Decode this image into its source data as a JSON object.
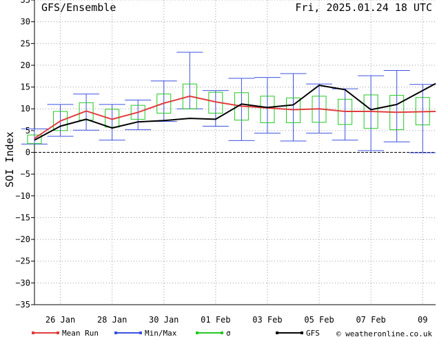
{
  "chart_data": {
    "type": "line",
    "title": "GFS/Ensemble",
    "run_label": "Fri, 2025.01.24   18 UTC",
    "ylabel": "SOI Index",
    "ylim": [
      -35,
      35
    ],
    "yticks": [
      -35,
      -30,
      -25,
      -20,
      -15,
      -10,
      -5,
      0,
      5,
      10,
      15,
      20,
      25,
      30,
      35
    ],
    "xlim": [
      0,
      15.5
    ],
    "x_tick_labels": [
      {
        "x": 1,
        "label": "26 Jan"
      },
      {
        "x": 3,
        "label": "28 Jan"
      },
      {
        "x": 5,
        "label": "30 Jan"
      },
      {
        "x": 7,
        "label": "01 Feb"
      },
      {
        "x": 9,
        "label": "03 Feb"
      },
      {
        "x": 11,
        "label": "05 Feb"
      },
      {
        "x": 13,
        "label": "07 Feb"
      },
      {
        "x": 15,
        "label": "09"
      }
    ],
    "grid": true,
    "legend_position": "bottom",
    "series": [
      {
        "name": "Mean Run",
        "color": "#e03c3c",
        "x": [
          0,
          1,
          2,
          3,
          4,
          5,
          6,
          7,
          8,
          9,
          10,
          11,
          12,
          13,
          14,
          15.5
        ],
        "values": [
          3.2,
          7.2,
          9.5,
          7.6,
          9.2,
          11.3,
          12.9,
          11.6,
          10.6,
          10.2,
          9.8,
          10.0,
          9.4,
          9.4,
          9.2,
          9.4
        ]
      },
      {
        "name": "GFS",
        "color": "#000000",
        "x": [
          0,
          1,
          2,
          3,
          4,
          5,
          6,
          7,
          8,
          9,
          10,
          11,
          12,
          13,
          14,
          15.5
        ],
        "values": [
          2.8,
          6.0,
          7.6,
          5.6,
          7.0,
          7.3,
          7.8,
          7.6,
          11.1,
          10.3,
          10.9,
          15.4,
          14.4,
          9.8,
          11.0,
          15.8
        ]
      }
    ],
    "minmax": {
      "name": "Min/Max",
      "color": "#3c50e0",
      "x": [
        0,
        1,
        2,
        3,
        4,
        5,
        6,
        7,
        8,
        9,
        10,
        11,
        12,
        13,
        14,
        15
      ],
      "min": [
        1.9,
        3.7,
        5.1,
        2.8,
        5.2,
        7.1,
        10.0,
        6.0,
        2.7,
        4.4,
        2.6,
        4.4,
        2.8,
        0.4,
        2.4,
        -0.1
      ],
      "max": [
        5.4,
        11.0,
        13.4,
        11.0,
        12.0,
        16.4,
        23.0,
        14.2,
        17.0,
        17.2,
        18.1,
        15.7,
        14.6,
        17.6,
        18.8,
        15.6
      ]
    },
    "sigma": {
      "name": "σ",
      "color": "#22c822",
      "x": [
        0,
        1,
        2,
        3,
        4,
        5,
        6,
        7,
        8,
        9,
        10,
        11,
        12,
        13,
        14,
        15
      ],
      "low": [
        2.0,
        5.0,
        7.4,
        5.8,
        7.6,
        9.0,
        10.0,
        9.0,
        7.4,
        6.8,
        6.8,
        6.9,
        6.4,
        5.5,
        5.2,
        6.3
      ],
      "high": [
        4.0,
        9.4,
        11.4,
        9.9,
        10.8,
        13.4,
        15.7,
        13.8,
        13.7,
        12.9,
        12.5,
        12.9,
        12.2,
        13.2,
        13.1,
        12.6
      ]
    }
  },
  "footer": {
    "legend": [
      {
        "key": "mean",
        "label": "Mean Run",
        "color": "#e03c3c",
        "marker_color": "#e03c3c"
      },
      {
        "key": "minmax",
        "label": "Min/Max",
        "color": "#3c50e0",
        "marker_color": "#3c50e0"
      },
      {
        "key": "sigma",
        "label": "σ",
        "color": "#22c822",
        "marker_color": "#22c822"
      },
      {
        "key": "gfs",
        "label": "GFS",
        "color": "#000000",
        "marker_color": "#000000"
      }
    ],
    "copyright": "© weatheronline.co.uk"
  }
}
